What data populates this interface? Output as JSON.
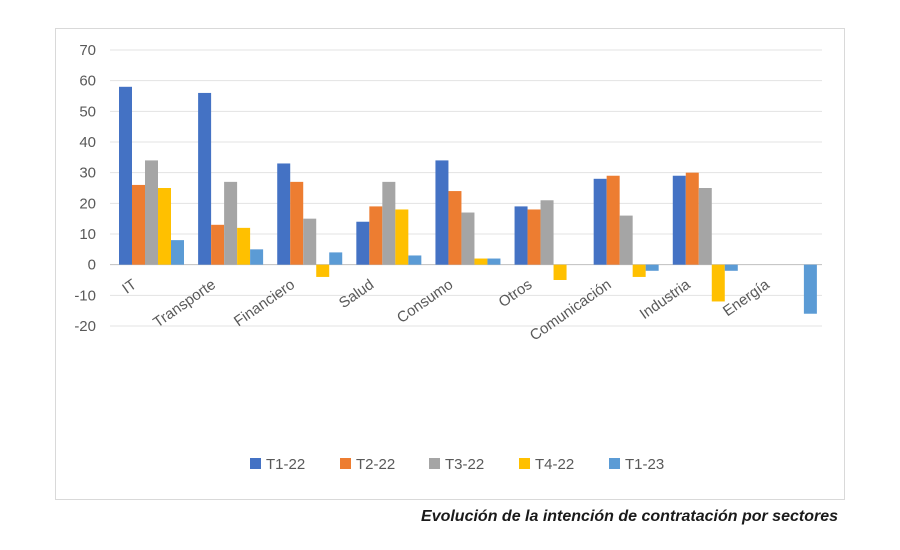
{
  "chart_data": {
    "type": "bar",
    "title": "",
    "xlabel": "",
    "ylabel": "",
    "ylim": [
      -20,
      70
    ],
    "yticks": [
      70,
      60,
      50,
      40,
      30,
      20,
      10,
      0,
      -10,
      -20
    ],
    "grid": true,
    "legend_position": "bottom",
    "categories": [
      "IT",
      "Transporte",
      "Financiero",
      "Salud",
      "Consumo",
      "Otros",
      "Comunicación",
      "Industria",
      "Energía"
    ],
    "series": [
      {
        "name": "T1-22",
        "color": "#4472c4",
        "values": [
          58,
          56,
          33,
          14,
          34,
          19,
          28,
          29,
          0
        ]
      },
      {
        "name": "T2-22",
        "color": "#ed7d31",
        "values": [
          26,
          13,
          27,
          19,
          24,
          18,
          29,
          30,
          0
        ]
      },
      {
        "name": "T3-22",
        "color": "#a5a5a5",
        "values": [
          34,
          27,
          15,
          27,
          17,
          21,
          16,
          25,
          0
        ]
      },
      {
        "name": "T4-22",
        "color": "#ffc000",
        "values": [
          25,
          12,
          -4,
          18,
          2,
          -5,
          -4,
          -12,
          0
        ]
      },
      {
        "name": "T1-23",
        "color": "#5b9bd5",
        "values": [
          8,
          5,
          4,
          3,
          2,
          0,
          -2,
          -2,
          -16
        ]
      }
    ]
  },
  "caption": "Evolución de la intención de contratación por sectores"
}
